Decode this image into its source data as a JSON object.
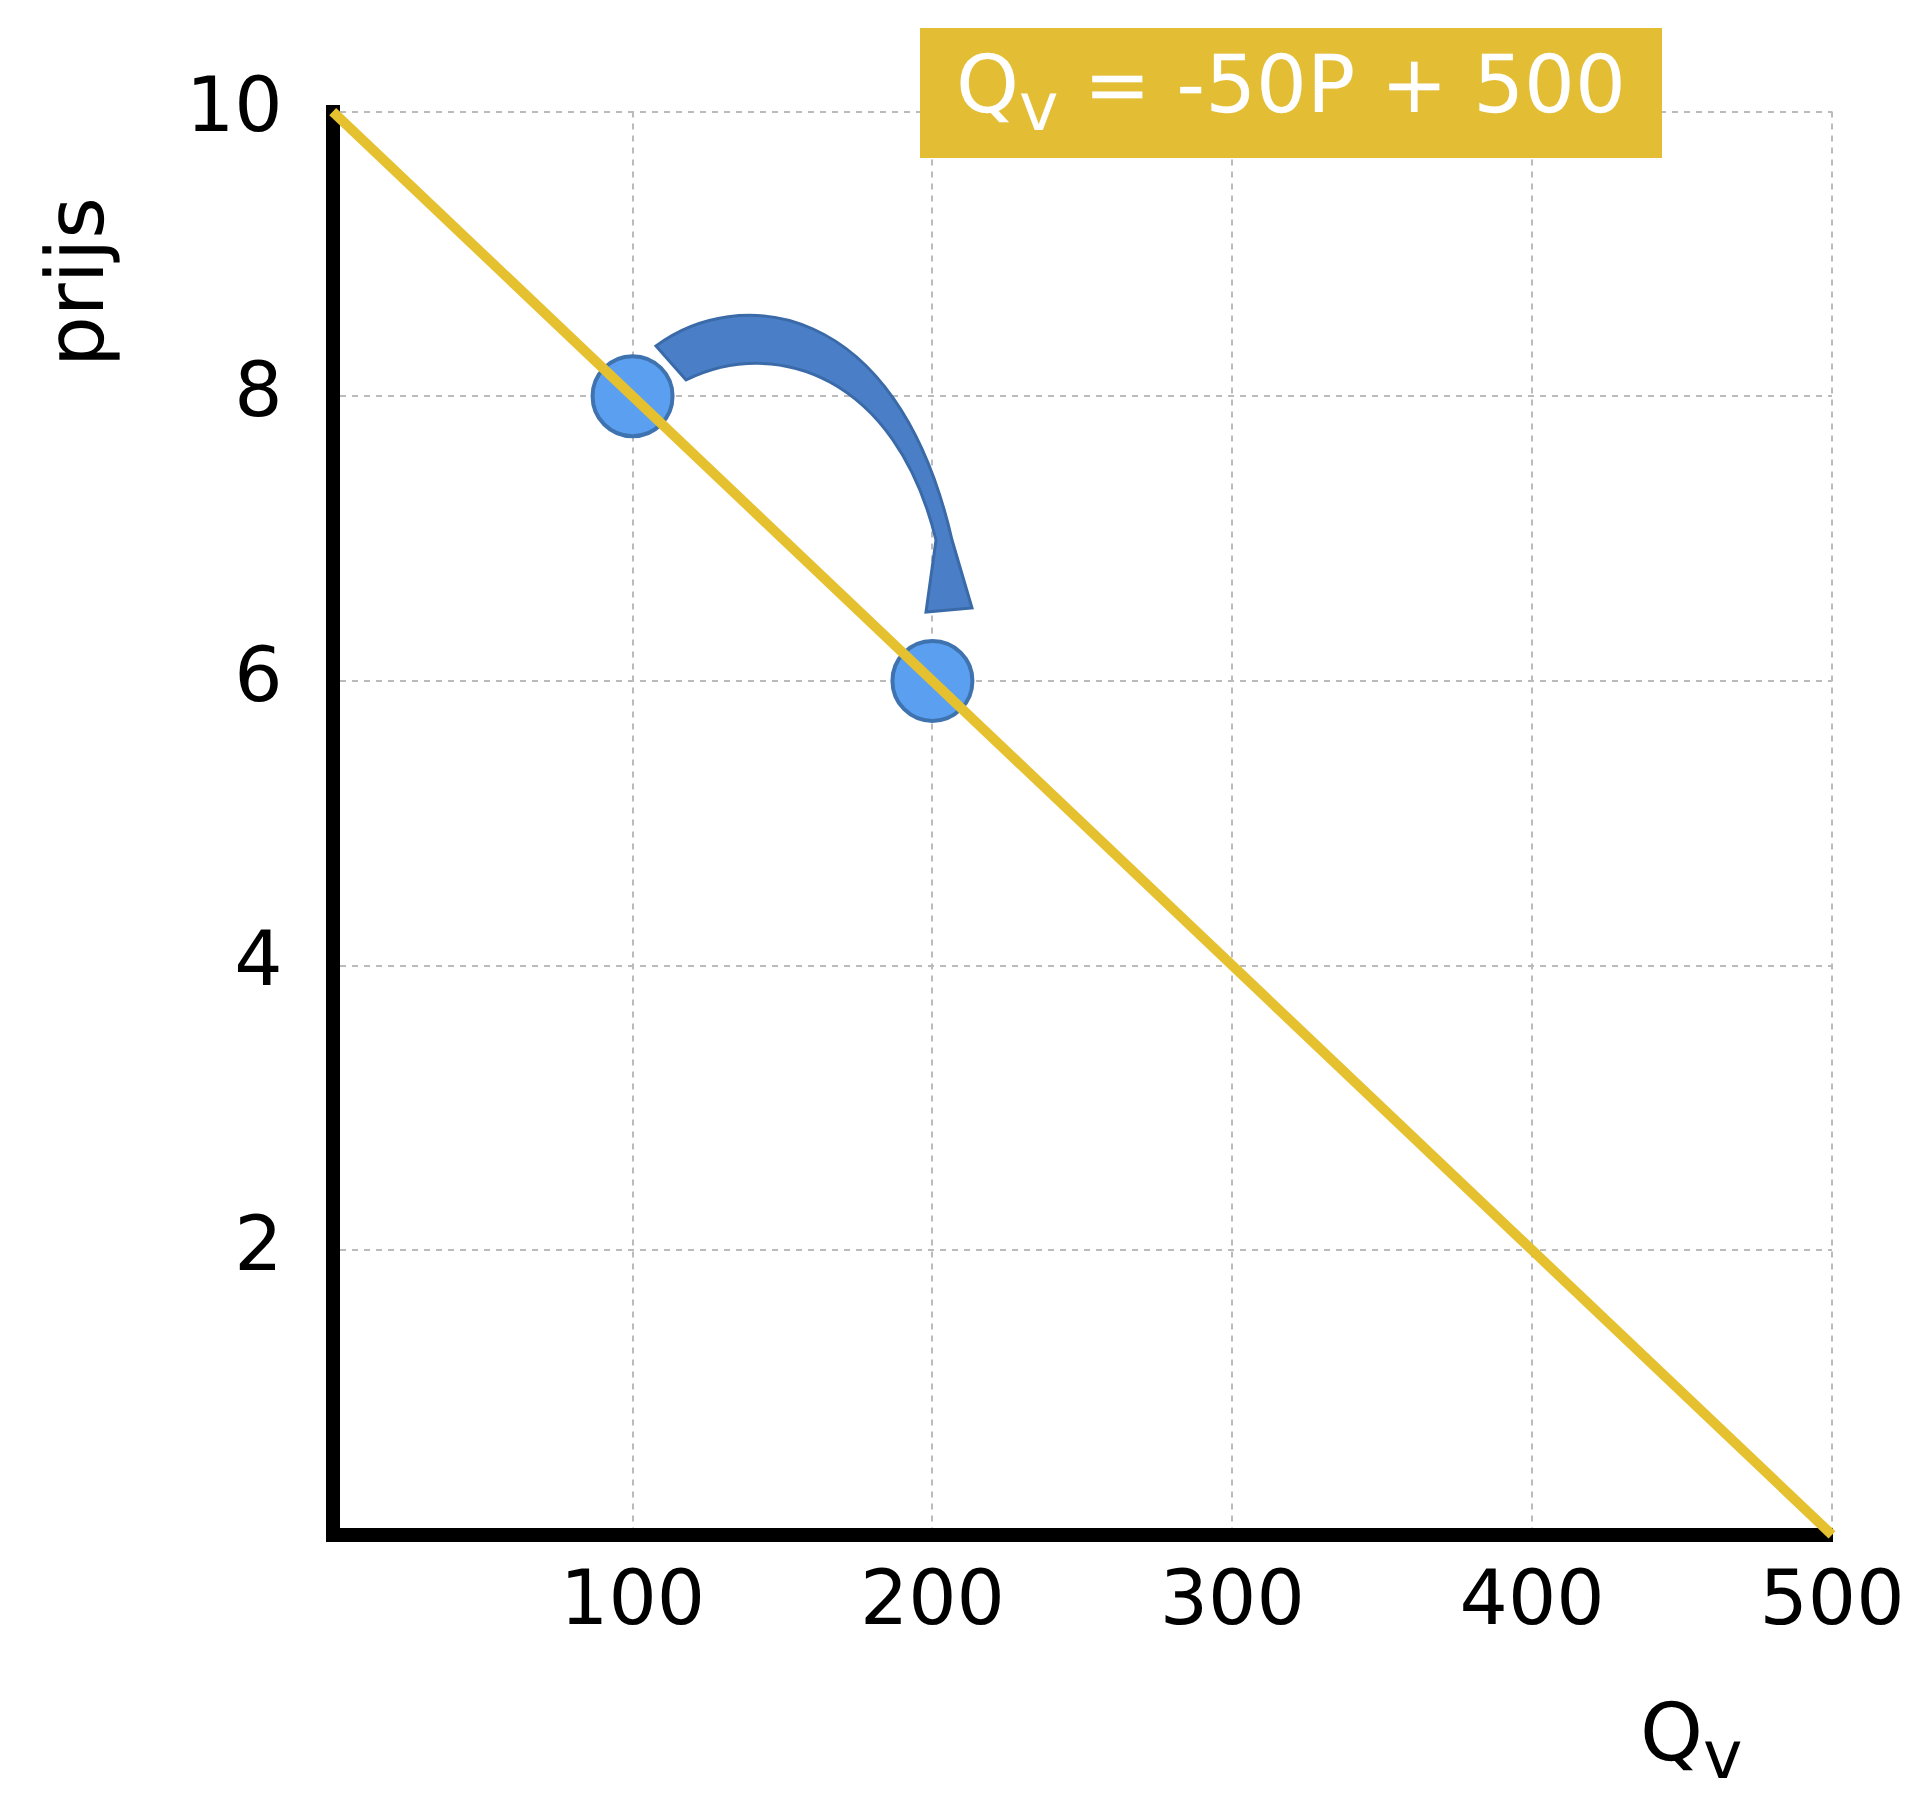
{
  "chart_data": {
    "type": "line",
    "xlabel": "Q$_{v}$",
    "ylabel": "prijs",
    "annotations": [
      "Q$_{v}$ = -50P + 500"
    ],
    "xlim": [
      0,
      500
    ],
    "ylim": [
      0,
      10
    ],
    "xticks": [
      100,
      200,
      300,
      400,
      500
    ],
    "yticks": [
      2,
      4,
      6,
      8,
      10
    ],
    "grid": true,
    "legend": false,
    "series": [
      {
        "x": [
          0,
          500
        ],
        "values": [
          10,
          0
        ],
        "color": "#e6c12f",
        "marker": "none"
      },
      {
        "type": "scatter",
        "x": [
          100,
          200
        ],
        "values": [
          8,
          6
        ],
        "color": "#5b9ff0",
        "marker": "circle"
      }
    ]
  }
}
